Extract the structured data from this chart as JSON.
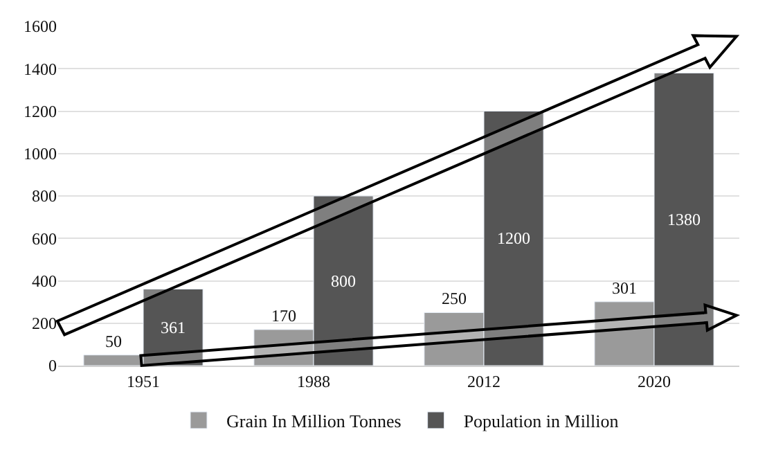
{
  "chart_data": {
    "type": "bar",
    "categories": [
      "1951",
      "1988",
      "2012",
      "2020"
    ],
    "series": [
      {
        "name": "Grain In Million Tonnes",
        "color": "#9a9a9a",
        "values": [
          50,
          170,
          250,
          301
        ]
      },
      {
        "name": "Population in Million",
        "color": "#555555",
        "values": [
          361,
          800,
          1200,
          1380
        ]
      }
    ],
    "ylim": [
      0,
      1600
    ],
    "yticks": [
      0,
      200,
      400,
      600,
      800,
      1000,
      1200,
      1400,
      1600
    ],
    "grid": "y",
    "legend": "bottom",
    "data_labels": true
  }
}
